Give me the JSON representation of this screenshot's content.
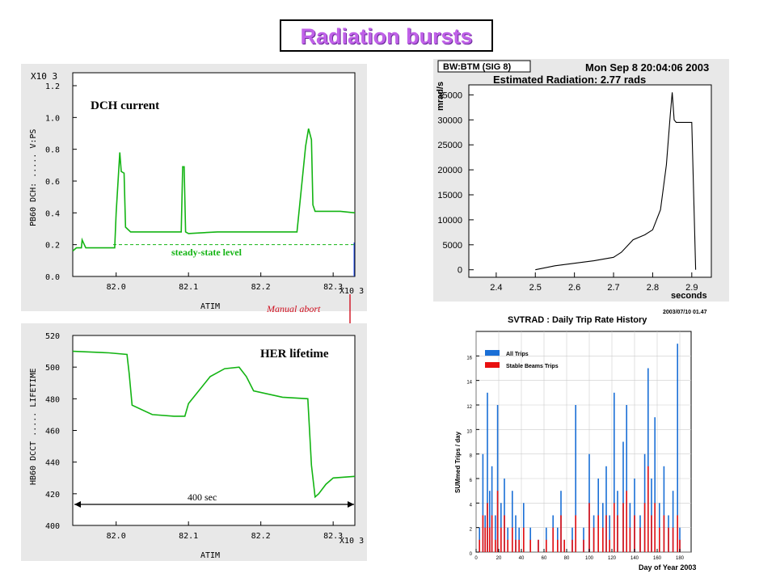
{
  "slide_title": "Radiation bursts",
  "chart_data": [
    {
      "type": "line",
      "title": "DCH current",
      "ylabel": "PB60 DCH: ..... V:PS",
      "xlabel": "ATIM",
      "xlim": [
        81.94,
        82.33
      ],
      "ylim": [
        0.0,
        1.2
      ],
      "y_exponent": "X10 3",
      "x_exponent": "X10 3",
      "xticks": [
        "82.0",
        "82.1",
        "82.2",
        "82.3"
      ],
      "yticks": [
        "0.0",
        "0.2",
        "0.4",
        "0.6",
        "0.8",
        "1.0",
        "1.2"
      ],
      "annotation": "steady-state level",
      "steady_state_value": 0.2,
      "series": [
        {
          "x": [
            81.94,
            81.945,
            81.952,
            81.953,
            81.958,
            81.968,
            81.998,
            82.0,
            82.005,
            82.007,
            82.011,
            82.013,
            82.02,
            82.09,
            82.092,
            82.094,
            82.096,
            82.1,
            82.14,
            82.25,
            82.262,
            82.266,
            82.27,
            82.272,
            82.275,
            82.31,
            82.33
          ],
          "y": [
            0.16,
            0.18,
            0.18,
            0.23,
            0.18,
            0.18,
            0.18,
            0.4,
            0.78,
            0.66,
            0.65,
            0.31,
            0.28,
            0.28,
            0.69,
            0.69,
            0.28,
            0.27,
            0.28,
            0.28,
            0.82,
            0.93,
            0.86,
            0.45,
            0.41,
            0.41,
            0.4
          ]
        }
      ]
    },
    {
      "type": "line",
      "title": "HER lifetime",
      "ylabel": "HB60 DCCT ..... LIFETIME",
      "xlabel": "ATIM",
      "xlim": [
        81.94,
        82.33
      ],
      "ylim": [
        400,
        520
      ],
      "x_exponent": "X10 3",
      "xticks": [
        "82.0",
        "82.1",
        "82.2",
        "82.3"
      ],
      "yticks": [
        "400",
        "420",
        "440",
        "460",
        "480",
        "500",
        "520"
      ],
      "annotation": "400 sec",
      "series": [
        {
          "x": [
            81.94,
            81.99,
            82.015,
            82.018,
            82.022,
            82.05,
            82.08,
            82.095,
            82.1,
            82.13,
            82.15,
            82.17,
            82.18,
            82.19,
            82.23,
            82.265,
            82.27,
            82.275,
            82.28,
            82.29,
            82.3,
            82.33
          ],
          "y": [
            510,
            509,
            508,
            496,
            476,
            470,
            469,
            469,
            477,
            494,
            499,
            500,
            494,
            485,
            481,
            480,
            438,
            418,
            420,
            426,
            430,
            431
          ]
        }
      ]
    },
    {
      "type": "line",
      "title": "Estimated Radiation: 2.77 rads",
      "label_box": "BW:BTM (SIG 8)",
      "timestamp": "Mon Sep  8 20:04:06 2003",
      "ylabel": "mrad/s",
      "xlabel": "seconds",
      "xlim": [
        2.33,
        2.95
      ],
      "ylim": [
        -1500,
        37000
      ],
      "xticks": [
        "2.4",
        "2.5",
        "2.6",
        "2.7",
        "2.8",
        "2.9"
      ],
      "yticks": [
        "0",
        "5000",
        "10000",
        "15000",
        "20000",
        "25000",
        "30000",
        "35000"
      ],
      "series": [
        {
          "x": [
            2.5,
            2.55,
            2.6,
            2.65,
            2.7,
            2.72,
            2.75,
            2.78,
            2.8,
            2.82,
            2.835,
            2.845,
            2.85,
            2.855,
            2.86,
            2.9,
            2.91
          ],
          "y": [
            0,
            800,
            1300,
            1800,
            2500,
            3500,
            6000,
            7000,
            8000,
            12000,
            21000,
            31000,
            35500,
            30000,
            29500,
            29500,
            0
          ]
        }
      ]
    },
    {
      "type": "bar",
      "title": "SVTRAD : Daily Trip Rate History",
      "timestamp": "2003/07/10   01.47",
      "ylabel": "SUMmed Trips / day",
      "xlabel": "Day of Year 2003",
      "xlim": [
        0,
        190
      ],
      "ylim": [
        0,
        18
      ],
      "xticks": [
        "0",
        "20",
        "40",
        "60",
        "80",
        "100",
        "120",
        "140",
        "160",
        "180"
      ],
      "yticks": [
        "0",
        "2",
        "4",
        "6",
        "8",
        "10",
        "12",
        "14",
        "16"
      ],
      "legend_position": "top-left",
      "series": [
        {
          "name": "All Trips",
          "color": "#1a6fd6",
          "x": [
            3,
            6,
            8,
            10,
            12,
            14,
            17,
            19,
            22,
            25,
            28,
            32,
            35,
            38,
            42,
            48,
            55,
            62,
            68,
            72,
            75,
            78,
            85,
            88,
            95,
            100,
            104,
            108,
            112,
            115,
            118,
            122,
            125,
            130,
            133,
            136,
            140,
            145,
            149,
            152,
            155,
            158,
            162,
            166,
            170,
            174,
            178,
            180
          ],
          "y": [
            2,
            8,
            3,
            13,
            5,
            7,
            3,
            12,
            4,
            6,
            2,
            5,
            3,
            2,
            4,
            2,
            1,
            2,
            3,
            2,
            5,
            1,
            2,
            12,
            2,
            8,
            3,
            6,
            4,
            7,
            3,
            13,
            5,
            9,
            12,
            4,
            6,
            3,
            8,
            15,
            6,
            11,
            4,
            7,
            3,
            5,
            17,
            2
          ]
        },
        {
          "name": "Stable Beams Trips",
          "color": "#e81010",
          "x": [
            3,
            6,
            8,
            10,
            12,
            14,
            17,
            19,
            22,
            25,
            28,
            32,
            35,
            38,
            42,
            48,
            55,
            62,
            68,
            72,
            75,
            78,
            85,
            88,
            95,
            100,
            104,
            108,
            112,
            115,
            118,
            122,
            125,
            130,
            133,
            136,
            140,
            145,
            149,
            152,
            155,
            158,
            162,
            166,
            170,
            174,
            178,
            180
          ],
          "y": [
            1,
            3,
            2,
            4,
            2,
            3,
            1,
            5,
            2,
            3,
            1,
            2,
            1,
            1,
            2,
            1,
            1,
            1,
            2,
            1,
            3,
            1,
            1,
            3,
            1,
            4,
            2,
            3,
            2,
            3,
            1,
            4,
            3,
            4,
            5,
            2,
            3,
            2,
            4,
            7,
            3,
            4,
            2,
            3,
            2,
            2,
            3,
            1
          ]
        }
      ]
    }
  ],
  "arrow_annotation": "Manual abort",
  "colors": {
    "trace": "#13b413",
    "title_accent": "#c061e8",
    "annotation": "#d01020"
  }
}
